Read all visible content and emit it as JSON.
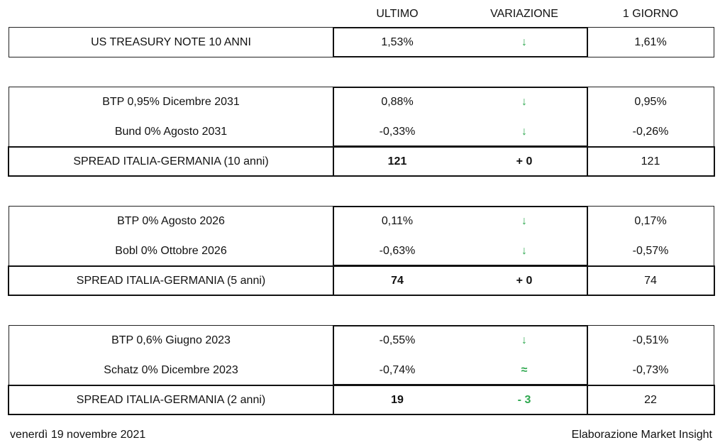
{
  "header": {
    "ultimo": "ULTIMO",
    "variazione": "VARIAZIONE",
    "giorno": "1 GIORNO"
  },
  "blocks": [
    {
      "rows": [
        [
          "US TREASURY NOTE 10 ANNI",
          "1,53%",
          "↓",
          "1,61%"
        ]
      ]
    },
    {
      "rows": [
        [
          "BTP 0,95% Dicembre 2031",
          "0,88%",
          "↓",
          "0,95%"
        ],
        [
          "Bund 0% Agosto 2031",
          "-0,33%",
          "↓",
          "-0,26%"
        ],
        [
          "SPREAD ITALIA-GERMANIA (10 anni)",
          "121",
          "+ 0",
          "121"
        ]
      ]
    },
    {
      "rows": [
        [
          "BTP 0% Agosto 2026",
          "0,11%",
          "↓",
          "0,17%"
        ],
        [
          "Bobl 0% Ottobre 2026",
          "-0,63%",
          "↓",
          "-0,57%"
        ],
        [
          "SPREAD ITALIA-GERMANIA (5 anni)",
          "74",
          "+ 0",
          "74"
        ]
      ]
    },
    {
      "rows": [
        [
          "BTP 0,6% Giugno 2023",
          "-0,55%",
          "↓",
          "-0,51%"
        ],
        [
          "Schatz 0% Dicembre 2023",
          "-0,74%",
          "≈",
          "-0,73%"
        ],
        [
          "SPREAD ITALIA-GERMANIA (2 anni)",
          "19",
          "- 3",
          "22"
        ]
      ]
    }
  ],
  "footer": {
    "date": "venerdì 19 novembre 2021",
    "source": "Elaborazione Market Insight"
  }
}
